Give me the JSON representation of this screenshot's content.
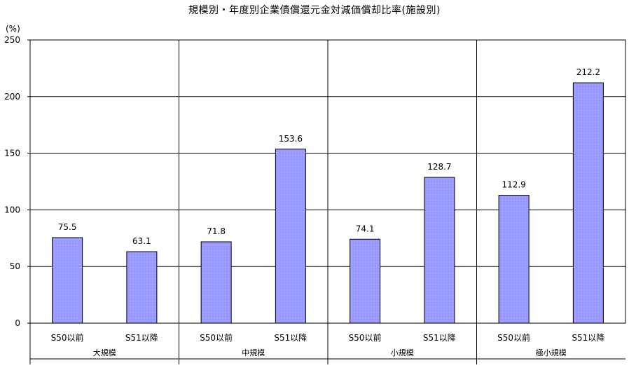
{
  "chart_data": {
    "type": "bar",
    "title": "規模別・年度別企業債償還元金対減価償却比率(施設別)",
    "ylabel": "(%)",
    "ylim": [
      0,
      250
    ],
    "yticks": [
      0,
      50,
      100,
      150,
      200,
      250
    ],
    "grid": true,
    "legend": "none",
    "bar_color": "#9999ff",
    "groups": [
      {
        "name": "大規模",
        "categories": [
          "S50以前",
          "S51以降"
        ],
        "values": [
          75.5,
          63.1
        ],
        "labels": [
          "75.5",
          "63.1"
        ]
      },
      {
        "name": "中規模",
        "categories": [
          "S50以前",
          "S51以降"
        ],
        "values": [
          71.8,
          153.6
        ],
        "labels": [
          "71.8",
          "153.6"
        ]
      },
      {
        "name": "小規模",
        "categories": [
          "S50以前",
          "S51以降"
        ],
        "values": [
          74.1,
          128.7
        ],
        "labels": [
          "74.1",
          "128.7"
        ]
      },
      {
        "name": "極小規模",
        "categories": [
          "S50以前",
          "S51以降"
        ],
        "values": [
          112.9,
          212.2
        ],
        "labels": [
          "112.9",
          "212.2"
        ]
      }
    ]
  }
}
